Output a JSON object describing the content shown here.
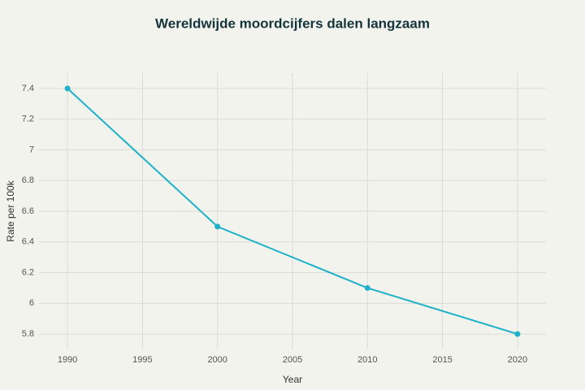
{
  "chart_data": {
    "type": "line",
    "title": "Wereldwijde moordcijfers dalen langzaam",
    "x_label": "Year",
    "y_label": "Rate per 100k",
    "x": [
      1990,
      2000,
      2010,
      2020
    ],
    "series": [
      {
        "name": "Rate per 100k",
        "color": "#1fb1c8",
        "values": [
          7.4,
          6.5,
          6.1,
          5.8
        ]
      }
    ],
    "xlim": [
      1988.1,
      2021.9
    ],
    "xticks": [
      1990,
      1995,
      2000,
      2005,
      2010,
      2015,
      2020
    ],
    "ylim": [
      5.7,
      7.5
    ],
    "yticks": [
      5.8,
      6,
      6.2,
      6.4,
      6.6,
      6.8,
      7,
      7.2,
      7.4
    ],
    "grid": true
  }
}
